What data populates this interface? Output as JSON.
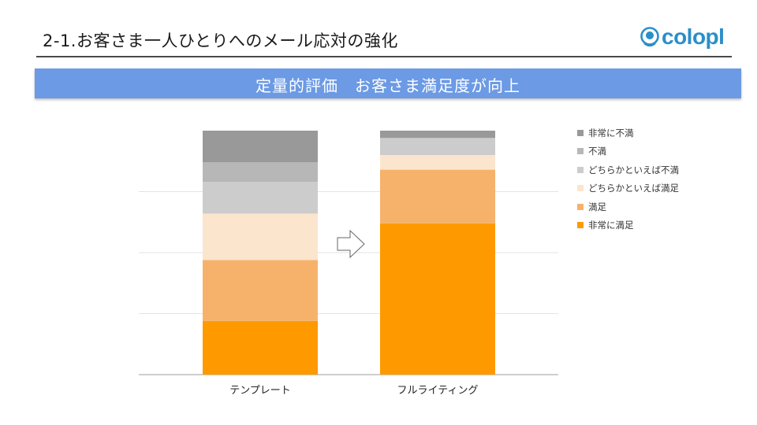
{
  "header": {
    "title": "2-1.お客さま一人ひとりへのメール応対の強化",
    "logo_text": "colopl"
  },
  "banner": {
    "text": "定量的評価　お客さま満足度が向上"
  },
  "chart_data": {
    "type": "bar",
    "stacked": true,
    "normalized": true,
    "categories": [
      "テンプレート",
      "フルライティング"
    ],
    "series": [
      {
        "name": "非常に満足",
        "color": "#ff9900",
        "values": [
          22,
          62
        ]
      },
      {
        "name": "満足",
        "color": "#f6b26b",
        "values": [
          25,
          22
        ]
      },
      {
        "name": "どちらかといえば満足",
        "color": "#fce5cd",
        "values": [
          19,
          6
        ]
      },
      {
        "name": "どちらかといえば不満",
        "color": "#cccccc",
        "values": [
          13,
          7
        ]
      },
      {
        "name": "不満",
        "color": "#b7b7b7",
        "values": [
          8,
          0
        ]
      },
      {
        "name": "非常に不満",
        "color": "#999999",
        "values": [
          13,
          3
        ]
      }
    ],
    "legend_order": [
      "非常に不満",
      "不満",
      "どちらかといえば不満",
      "どちらかといえば満足",
      "満足",
      "非常に満足"
    ],
    "legend_position": "right",
    "ylim": [
      0,
      100
    ],
    "grid": true,
    "transition_icon": "right-arrow-icon"
  }
}
